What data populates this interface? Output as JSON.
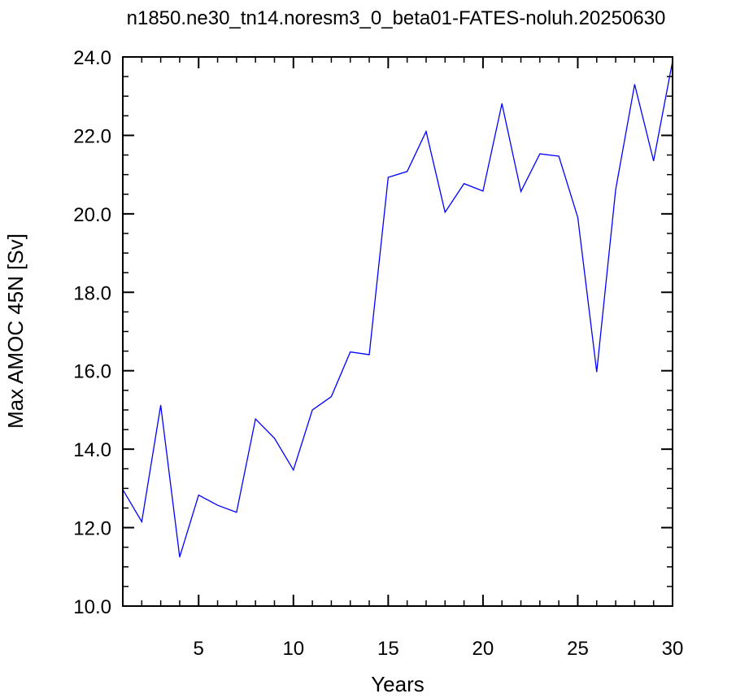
{
  "chart_data": {
    "type": "line",
    "title": "n1850.ne30_tn14.noresm3_0_beta01-FATES-noluh.20250630",
    "xlabel": "Years",
    "ylabel": "Max AMOC 45N [Sv]",
    "xlim": [
      1,
      30
    ],
    "ylim": [
      10.0,
      24.0
    ],
    "xticks": [
      5,
      10,
      15,
      20,
      25,
      30
    ],
    "xtick_labels": [
      "5",
      "10",
      "15",
      "20",
      "25",
      "30"
    ],
    "yticks": [
      10.0,
      12.0,
      14.0,
      16.0,
      18.0,
      20.0,
      22.0,
      24.0
    ],
    "ytick_labels": [
      "10.0",
      "12.0",
      "14.0",
      "16.0",
      "18.0",
      "20.0",
      "22.0",
      "24.0"
    ],
    "grid": false,
    "series": [
      {
        "color": "#0000ff",
        "x": [
          1,
          2,
          3,
          4,
          5,
          6,
          7,
          8,
          9,
          10,
          11,
          12,
          13,
          14,
          15,
          16,
          17,
          18,
          19,
          20,
          21,
          22,
          23,
          24,
          25,
          26,
          27,
          28,
          29,
          30
        ],
        "y": [
          12.97,
          12.15,
          15.12,
          11.25,
          12.83,
          12.57,
          12.39,
          14.77,
          14.28,
          13.47,
          15.0,
          15.34,
          16.48,
          16.41,
          20.93,
          21.08,
          22.1,
          20.04,
          20.77,
          20.58,
          22.81,
          20.57,
          21.53,
          21.47,
          19.91,
          15.97,
          20.62,
          23.3,
          21.35,
          23.89
        ]
      }
    ]
  }
}
